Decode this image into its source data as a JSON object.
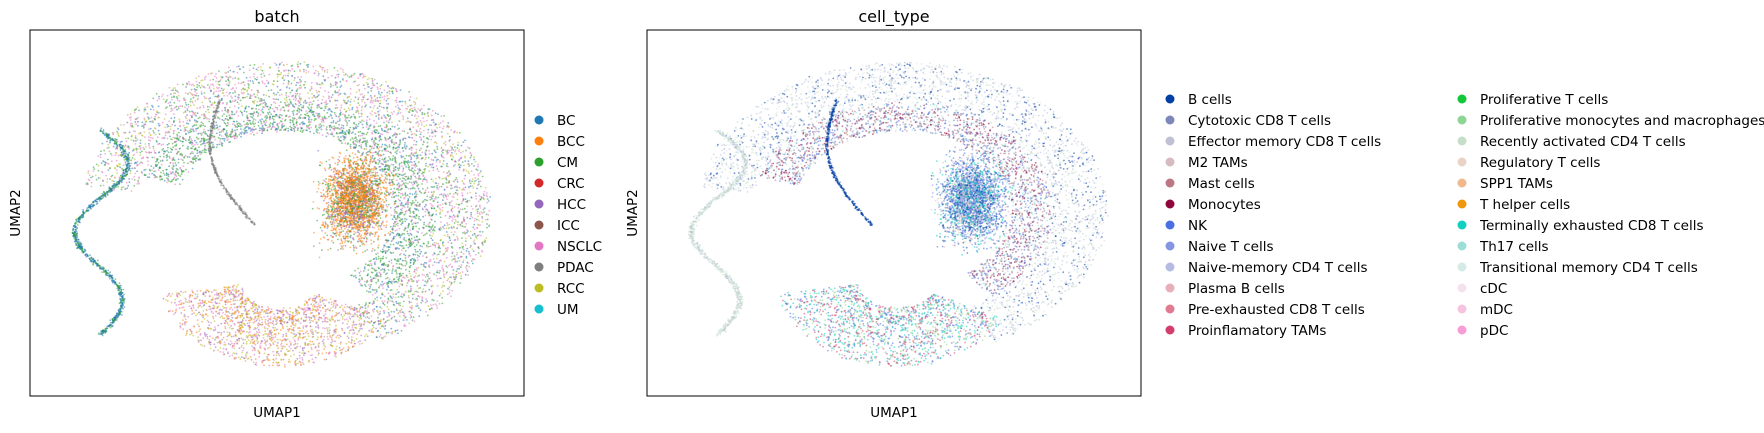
{
  "charts": [
    {
      "type": "scatter",
      "title": "batch",
      "xlabel": "UMAP1",
      "ylabel": "UMAP2",
      "legend_position": "right",
      "legend": [
        {
          "label": "BC",
          "color": "#1f77b4"
        },
        {
          "label": "BCC",
          "color": "#ff7f0e"
        },
        {
          "label": "CM",
          "color": "#2ca02c"
        },
        {
          "label": "CRC",
          "color": "#d62728"
        },
        {
          "label": "HCC",
          "color": "#9467bd"
        },
        {
          "label": "ICC",
          "color": "#8c564b"
        },
        {
          "label": "NSCLC",
          "color": "#e377c2"
        },
        {
          "label": "PDAC",
          "color": "#7f7f7f"
        },
        {
          "label": "RCC",
          "color": "#bcbd22"
        },
        {
          "label": "UM",
          "color": "#17becf"
        }
      ]
    },
    {
      "type": "scatter",
      "title": "cell_type",
      "xlabel": "UMAP1",
      "ylabel": "UMAP2",
      "legend_position": "right",
      "legend": [
        {
          "label": "B cells",
          "color": "#023fa5"
        },
        {
          "label": "Cytotoxic CD8 T cells",
          "color": "#7d87b9"
        },
        {
          "label": "Effector memory CD8 T cells",
          "color": "#bec1d4"
        },
        {
          "label": "M2 TAMs",
          "color": "#d6bcc0"
        },
        {
          "label": "Mast cells",
          "color": "#bb7784"
        },
        {
          "label": "Monocytes",
          "color": "#8e063b"
        },
        {
          "label": "NK",
          "color": "#4a6fe3"
        },
        {
          "label": "Naive T cells",
          "color": "#8595e1"
        },
        {
          "label": "Naive-memory CD4 T cells",
          "color": "#b5bbe3"
        },
        {
          "label": "Plasma B cells",
          "color": "#e6afb9"
        },
        {
          "label": "Pre-exhausted CD8 T cells",
          "color": "#e07b91"
        },
        {
          "label": "Proinflamatory TAMs",
          "color": "#d33f6a"
        },
        {
          "label": "Proliferative T cells",
          "color": "#11c638"
        },
        {
          "label": "Proliferative monocytes and macrophages",
          "color": "#8dd593"
        },
        {
          "label": "Recently activated CD4 T cells",
          "color": "#c6dec7"
        },
        {
          "label": "Regulatory T cells",
          "color": "#ead3c6"
        },
        {
          "label": "SPP1 TAMs",
          "color": "#f0b98d"
        },
        {
          "label": "T helper cells",
          "color": "#ef9708"
        },
        {
          "label": "Terminally exhausted CD8 T cells",
          "color": "#0fcfc0"
        },
        {
          "label": "Th17 cells",
          "color": "#9cded6"
        },
        {
          "label": "Transitional memory CD4 T cells",
          "color": "#d5eae7"
        },
        {
          "label": "cDC",
          "color": "#f3e1eb"
        },
        {
          "label": "mDC",
          "color": "#f6c4e1"
        },
        {
          "label": "pDC",
          "color": "#f79cd4"
        }
      ]
    }
  ]
}
